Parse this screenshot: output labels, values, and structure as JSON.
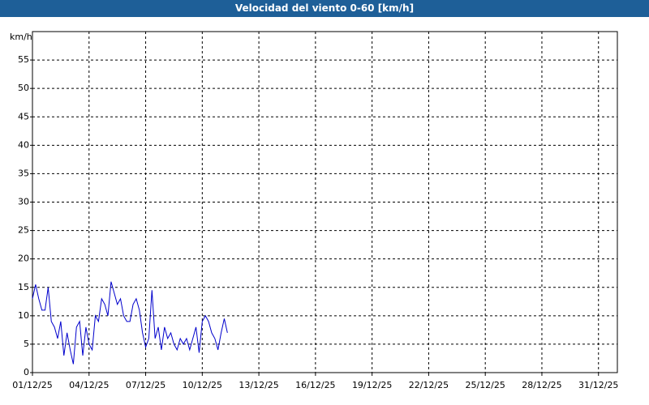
{
  "chart_data": {
    "type": "line",
    "title": "Velocidad del viento 0-60 [km/h]",
    "ylabel": "km/h",
    "color": "#0000cc",
    "grid": true,
    "ylim": [
      0,
      60
    ],
    "yticks": [
      0,
      5,
      10,
      15,
      20,
      25,
      30,
      35,
      40,
      45,
      50,
      55
    ],
    "xlim": [
      "2025-12-01",
      "2026-01-01"
    ],
    "xticks": [
      {
        "value": "2025-12-01",
        "label": "01/12/25"
      },
      {
        "value": "2025-12-04",
        "label": "04/12/25"
      },
      {
        "value": "2025-12-07",
        "label": "07/12/25"
      },
      {
        "value": "2025-12-10",
        "label": "10/12/25"
      },
      {
        "value": "2025-12-13",
        "label": "13/12/25"
      },
      {
        "value": "2025-12-16",
        "label": "16/12/25"
      },
      {
        "value": "2025-12-19",
        "label": "19/12/25"
      },
      {
        "value": "2025-12-22",
        "label": "22/12/25"
      },
      {
        "value": "2025-12-25",
        "label": "25/12/25"
      },
      {
        "value": "2025-12-28",
        "label": "28/12/25"
      },
      {
        "value": "2025-12-31",
        "label": "31/12/25"
      }
    ],
    "x": [
      "2025-12-01T00:00",
      "2025-12-01T04:00",
      "2025-12-01T08:00",
      "2025-12-01T12:00",
      "2025-12-01T16:00",
      "2025-12-01T20:00",
      "2025-12-02T00:00",
      "2025-12-02T04:00",
      "2025-12-02T08:00",
      "2025-12-02T12:00",
      "2025-12-02T16:00",
      "2025-12-02T20:00",
      "2025-12-03T00:00",
      "2025-12-03T04:00",
      "2025-12-03T08:00",
      "2025-12-03T12:00",
      "2025-12-03T16:00",
      "2025-12-03T20:00",
      "2025-12-04T00:00",
      "2025-12-04T04:00",
      "2025-12-04T08:00",
      "2025-12-04T12:00",
      "2025-12-04T16:00",
      "2025-12-04T20:00",
      "2025-12-05T00:00",
      "2025-12-05T04:00",
      "2025-12-05T08:00",
      "2025-12-05T12:00",
      "2025-12-05T16:00",
      "2025-12-05T20:00",
      "2025-12-06T00:00",
      "2025-12-06T04:00",
      "2025-12-06T08:00",
      "2025-12-06T12:00",
      "2025-12-06T16:00",
      "2025-12-06T20:00",
      "2025-12-07T00:00",
      "2025-12-07T04:00",
      "2025-12-07T08:00",
      "2025-12-07T12:00",
      "2025-12-07T16:00",
      "2025-12-07T20:00",
      "2025-12-08T00:00",
      "2025-12-08T04:00",
      "2025-12-08T08:00",
      "2025-12-08T12:00",
      "2025-12-08T16:00",
      "2025-12-08T20:00",
      "2025-12-09T00:00",
      "2025-12-09T04:00",
      "2025-12-09T08:00",
      "2025-12-09T12:00",
      "2025-12-09T16:00",
      "2025-12-09T20:00",
      "2025-12-10T00:00",
      "2025-12-10T04:00",
      "2025-12-10T08:00",
      "2025-12-10T12:00",
      "2025-12-10T16:00",
      "2025-12-10T20:00",
      "2025-12-11T00:00",
      "2025-12-11T04:00",
      "2025-12-11T08:00"
    ],
    "values": [
      13,
      15.5,
      13,
      11,
      11,
      15,
      9,
      8,
      6,
      9,
      3,
      7,
      4,
      1.5,
      8,
      9,
      3,
      8,
      5,
      4,
      10,
      9,
      13,
      12,
      10,
      16,
      14,
      12,
      13,
      10,
      9,
      9,
      12,
      13,
      11,
      7,
      4.5,
      6,
      14.5,
      6,
      8,
      4,
      8,
      6,
      7,
      5,
      4,
      6,
      5,
      6,
      4,
      6,
      8,
      3.5,
      9,
      10,
      9,
      7,
      6,
      4,
      7,
      9.5,
      7
    ]
  }
}
